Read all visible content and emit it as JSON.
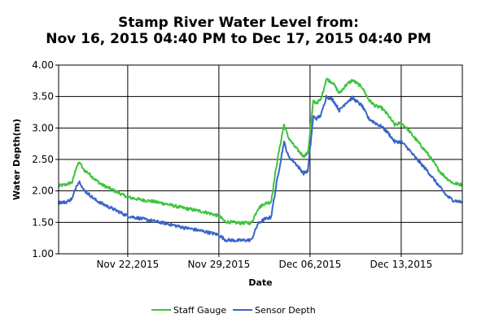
{
  "chart_data": {
    "type": "line",
    "title_line1": "Stamp River Water Level from:",
    "title_line2": "Nov 16, 2015 04:40 PM to Dec 17, 2015 04:40 PM",
    "xlabel": "Date",
    "ylabel": "Water Depth(m)",
    "ylim": [
      1.0,
      4.0
    ],
    "yticks": [
      "1.00",
      "1.50",
      "2.00",
      "2.50",
      "3.00",
      "3.50",
      "4.00"
    ],
    "xlim": [
      "2015-11-16 16:40",
      "2015-12-17 16:40"
    ],
    "xticks": [
      {
        "date": "2015-11-22",
        "label": "Nov 22,2015"
      },
      {
        "date": "2015-11-29",
        "label": "Nov 29,2015"
      },
      {
        "date": "2015-12-06",
        "label": "Dec 06,2015"
      },
      {
        "date": "2015-12-13",
        "label": "Dec 13,2015"
      }
    ],
    "grid": true,
    "legend": "bottom",
    "series": [
      {
        "name": "Staff Gauge",
        "color": "#3ec43e",
        "points": [
          [
            "2015-11-16 16:40",
            2.08
          ],
          [
            "2015-11-17 06:00",
            2.1
          ],
          [
            "2015-11-17 18:00",
            2.14
          ],
          [
            "2015-11-18 02:00",
            2.4
          ],
          [
            "2015-11-18 08:00",
            2.45
          ],
          [
            "2015-11-18 14:00",
            2.34
          ],
          [
            "2015-11-19 00:00",
            2.28
          ],
          [
            "2015-11-19 12:00",
            2.18
          ],
          [
            "2015-11-20 00:00",
            2.1
          ],
          [
            "2015-11-21 00:00",
            2.0
          ],
          [
            "2015-11-22 00:00",
            1.9
          ],
          [
            "2015-11-23 00:00",
            1.86
          ],
          [
            "2015-11-24 00:00",
            1.83
          ],
          [
            "2015-11-25 00:00",
            1.79
          ],
          [
            "2015-11-26 00:00",
            1.74
          ],
          [
            "2015-11-27 00:00",
            1.7
          ],
          [
            "2015-11-28 00:00",
            1.66
          ],
          [
            "2015-11-29 00:00",
            1.6
          ],
          [
            "2015-11-29 12:00",
            1.51
          ],
          [
            "2015-11-30 12:00",
            1.49
          ],
          [
            "2015-12-01 12:00",
            1.49
          ],
          [
            "2015-12-02 00:00",
            1.72
          ],
          [
            "2015-12-02 12:00",
            1.8
          ],
          [
            "2015-12-03 00:00",
            1.82
          ],
          [
            "2015-12-03 12:00",
            2.5
          ],
          [
            "2015-12-04 00:00",
            3.05
          ],
          [
            "2015-12-04 08:00",
            2.85
          ],
          [
            "2015-12-04 20:00",
            2.7
          ],
          [
            "2015-12-05 12:00",
            2.55
          ],
          [
            "2015-12-05 20:00",
            2.6
          ],
          [
            "2015-12-06 06:00",
            3.42
          ],
          [
            "2015-12-06 12:00",
            3.4
          ],
          [
            "2015-12-06 20:00",
            3.45
          ],
          [
            "2015-12-07 06:00",
            3.78
          ],
          [
            "2015-12-07 18:00",
            3.72
          ],
          [
            "2015-12-08 06:00",
            3.55
          ],
          [
            "2015-12-08 18:00",
            3.68
          ],
          [
            "2015-12-09 06:00",
            3.76
          ],
          [
            "2015-12-10 00:00",
            3.65
          ],
          [
            "2015-12-10 12:00",
            3.45
          ],
          [
            "2015-12-11 00:00",
            3.35
          ],
          [
            "2015-12-11 12:00",
            3.32
          ],
          [
            "2015-12-12 00:00",
            3.2
          ],
          [
            "2015-12-12 12:00",
            3.05
          ],
          [
            "2015-12-13 00:00",
            3.08
          ],
          [
            "2015-12-13 12:00",
            2.98
          ],
          [
            "2015-12-14 00:00",
            2.85
          ],
          [
            "2015-12-15 00:00",
            2.6
          ],
          [
            "2015-12-16 00:00",
            2.3
          ],
          [
            "2015-12-16 12:00",
            2.2
          ],
          [
            "2015-12-17 00:00",
            2.12
          ],
          [
            "2015-12-17 16:40",
            2.1
          ]
        ]
      },
      {
        "name": "Sensor Depth",
        "color": "#3a64c8",
        "points": [
          [
            "2015-11-16 16:40",
            1.82
          ],
          [
            "2015-11-17 06:00",
            1.82
          ],
          [
            "2015-11-17 18:00",
            1.88
          ],
          [
            "2015-11-18 02:00",
            2.1
          ],
          [
            "2015-11-18 08:00",
            2.15
          ],
          [
            "2015-11-18 14:00",
            2.02
          ],
          [
            "2015-11-19 00:00",
            1.95
          ],
          [
            "2015-11-19 12:00",
            1.86
          ],
          [
            "2015-11-20 00:00",
            1.8
          ],
          [
            "2015-11-21 00:00",
            1.7
          ],
          [
            "2015-11-22 00:00",
            1.6
          ],
          [
            "2015-11-23 00:00",
            1.56
          ],
          [
            "2015-11-24 00:00",
            1.52
          ],
          [
            "2015-11-25 00:00",
            1.48
          ],
          [
            "2015-11-26 00:00",
            1.43
          ],
          [
            "2015-11-27 00:00",
            1.39
          ],
          [
            "2015-11-28 00:00",
            1.35
          ],
          [
            "2015-11-29 00:00",
            1.3
          ],
          [
            "2015-11-29 12:00",
            1.22
          ],
          [
            "2015-11-30 12:00",
            1.21
          ],
          [
            "2015-12-01 12:00",
            1.22
          ],
          [
            "2015-12-02 00:00",
            1.48
          ],
          [
            "2015-12-02 12:00",
            1.55
          ],
          [
            "2015-12-03 00:00",
            1.58
          ],
          [
            "2015-12-03 12:00",
            2.2
          ],
          [
            "2015-12-04 00:00",
            2.78
          ],
          [
            "2015-12-04 08:00",
            2.55
          ],
          [
            "2015-12-04 20:00",
            2.45
          ],
          [
            "2015-12-05 12:00",
            2.28
          ],
          [
            "2015-12-05 20:00",
            2.32
          ],
          [
            "2015-12-06 06:00",
            3.18
          ],
          [
            "2015-12-06 12:00",
            3.15
          ],
          [
            "2015-12-06 20:00",
            3.2
          ],
          [
            "2015-12-07 06:00",
            3.5
          ],
          [
            "2015-12-07 18:00",
            3.45
          ],
          [
            "2015-12-08 06:00",
            3.28
          ],
          [
            "2015-12-08 18:00",
            3.4
          ],
          [
            "2015-12-09 06:00",
            3.48
          ],
          [
            "2015-12-10 00:00",
            3.35
          ],
          [
            "2015-12-10 12:00",
            3.15
          ],
          [
            "2015-12-11 00:00",
            3.08
          ],
          [
            "2015-12-11 12:00",
            3.02
          ],
          [
            "2015-12-12 00:00",
            2.92
          ],
          [
            "2015-12-12 12:00",
            2.78
          ],
          [
            "2015-12-13 00:00",
            2.78
          ],
          [
            "2015-12-13 12:00",
            2.68
          ],
          [
            "2015-12-14 00:00",
            2.55
          ],
          [
            "2015-12-15 00:00",
            2.32
          ],
          [
            "2015-12-16 00:00",
            2.05
          ],
          [
            "2015-12-16 12:00",
            1.92
          ],
          [
            "2015-12-17 00:00",
            1.85
          ],
          [
            "2015-12-17 16:40",
            1.82
          ]
        ]
      }
    ]
  }
}
